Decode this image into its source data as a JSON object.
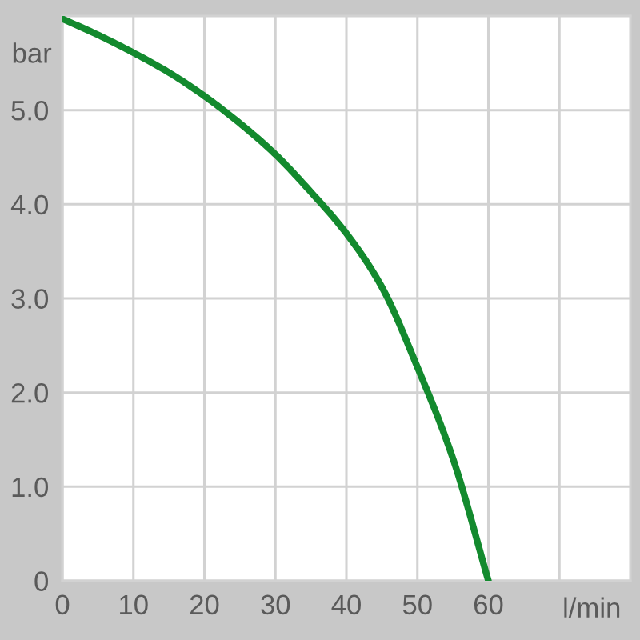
{
  "chart_data": {
    "type": "line",
    "xlabel": "l/min",
    "ylabel": "bar",
    "x": [
      0,
      5,
      10,
      15,
      20,
      25,
      30,
      35,
      40,
      45,
      50,
      55,
      60
    ],
    "series": [
      {
        "color": "#138a2e",
        "values": [
          5.97,
          5.8,
          5.61,
          5.4,
          5.15,
          4.86,
          4.53,
          4.13,
          3.69,
          3.12,
          2.27,
          1.3,
          0
        ]
      }
    ],
    "xlim": [
      0,
      80
    ],
    "ylim": [
      0,
      6
    ],
    "xticks": [
      0,
      10,
      20,
      30,
      40,
      50,
      60,
      {
        "value": 70,
        "label": null
      }
    ],
    "yticks": [
      0,
      {
        "value": 1,
        "label": "1.0"
      },
      {
        "value": 2,
        "label": "2.0"
      },
      {
        "value": 3,
        "label": "3.0"
      },
      {
        "value": 4,
        "label": "4.0"
      },
      {
        "value": 5,
        "label": "5.0"
      }
    ],
    "grid": true,
    "marker": "none",
    "line_style": "solid"
  }
}
